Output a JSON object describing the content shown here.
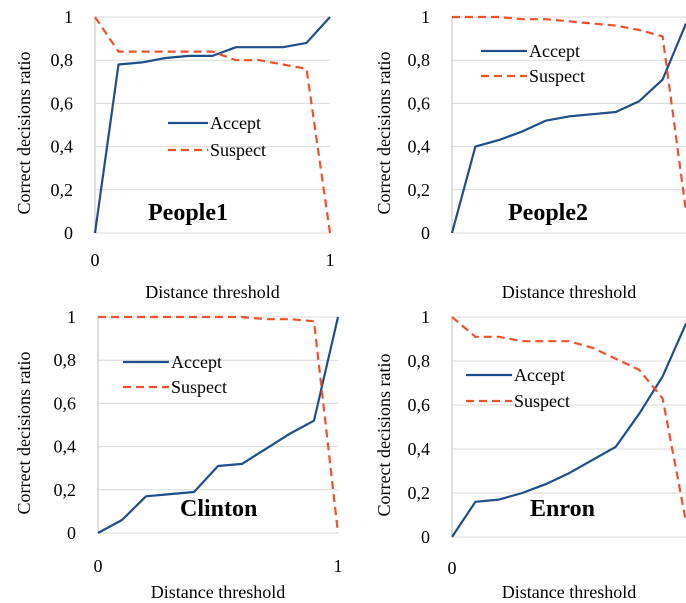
{
  "chart_data": [
    {
      "type": "line",
      "title": "People1",
      "xlabel": "Distance threshold",
      "ylabel": "Correct decisions ratio",
      "xlim": [
        0,
        1
      ],
      "ylim": [
        0,
        1
      ],
      "xticks": [
        "0",
        "1"
      ],
      "yticks": [
        "0",
        "0,2",
        "0,4",
        "0,6",
        "0,8",
        "1"
      ],
      "legend_position": "center-right",
      "series": [
        {
          "name": "Accept",
          "color": "#1F4E8C",
          "style": "solid",
          "x": [
            0,
            0.1,
            0.2,
            0.3,
            0.4,
            0.5,
            0.6,
            0.7,
            0.8,
            0.9,
            1.0
          ],
          "y": [
            0,
            0.78,
            0.79,
            0.81,
            0.82,
            0.82,
            0.86,
            0.86,
            0.86,
            0.88,
            1.0
          ]
        },
        {
          "name": "Suspect",
          "color": "#F0502A",
          "style": "dashed",
          "x": [
            0,
            0.1,
            0.2,
            0.3,
            0.4,
            0.5,
            0.6,
            0.7,
            0.8,
            0.9,
            1.0
          ],
          "y": [
            1.0,
            0.84,
            0.84,
            0.84,
            0.84,
            0.84,
            0.8,
            0.8,
            0.78,
            0.76,
            0
          ]
        }
      ]
    },
    {
      "type": "line",
      "title": "People2",
      "xlabel": "Distance threshold",
      "ylabel": "Correct decisions ratio",
      "xlim": [
        0,
        1
      ],
      "ylim": [
        0,
        1
      ],
      "xticks": [],
      "yticks": [
        "0",
        "0,2",
        "0,4",
        "0,6",
        "0,8",
        "1"
      ],
      "legend_position": "top-left",
      "series": [
        {
          "name": "Accept",
          "color": "#1F4E8C",
          "style": "solid",
          "x": [
            0,
            0.1,
            0.2,
            0.3,
            0.4,
            0.5,
            0.6,
            0.7,
            0.8,
            0.9,
            1.0
          ],
          "y": [
            0,
            0.4,
            0.43,
            0.47,
            0.52,
            0.54,
            0.55,
            0.56,
            0.61,
            0.71,
            0.97
          ]
        },
        {
          "name": "Suspect",
          "color": "#F0502A",
          "style": "dashed",
          "x": [
            0,
            0.1,
            0.2,
            0.3,
            0.4,
            0.5,
            0.6,
            0.7,
            0.8,
            0.9,
            1.0
          ],
          "y": [
            1.0,
            1.0,
            1.0,
            0.99,
            0.99,
            0.98,
            0.97,
            0.96,
            0.94,
            0.91,
            0.1
          ]
        }
      ]
    },
    {
      "type": "line",
      "title": "Clinton",
      "xlabel": "Distance threshold",
      "ylabel": "Correct decisions ratio",
      "xlim": [
        0,
        1
      ],
      "ylim": [
        0,
        1
      ],
      "xticks": [
        "0",
        "1"
      ],
      "yticks": [
        "0",
        "0,2",
        "0,4",
        "0,6",
        "0,8",
        "1"
      ],
      "legend_position": "top-left",
      "series": [
        {
          "name": "Accept",
          "color": "#1F4E8C",
          "style": "solid",
          "x": [
            0,
            0.1,
            0.2,
            0.3,
            0.4,
            0.5,
            0.6,
            0.7,
            0.8,
            0.9,
            1.0
          ],
          "y": [
            0,
            0.06,
            0.17,
            0.18,
            0.19,
            0.31,
            0.32,
            0.39,
            0.46,
            0.52,
            1.0
          ]
        },
        {
          "name": "Suspect",
          "color": "#F0502A",
          "style": "dashed",
          "x": [
            0,
            0.1,
            0.2,
            0.3,
            0.4,
            0.5,
            0.6,
            0.7,
            0.8,
            0.9,
            1.0
          ],
          "y": [
            1.0,
            1.0,
            1.0,
            1.0,
            1.0,
            1.0,
            1.0,
            0.99,
            0.99,
            0.98,
            0
          ]
        }
      ]
    },
    {
      "type": "line",
      "title": "Enron",
      "xlabel": "Distance threshold",
      "ylabel": "Correct decisions ratio",
      "xlim": [
        0,
        1
      ],
      "ylim": [
        0,
        1
      ],
      "xticks": [
        "0"
      ],
      "yticks": [
        "0",
        "0,2",
        "0,4",
        "0,6",
        "0,8",
        "1"
      ],
      "legend_position": "top-left",
      "series": [
        {
          "name": "Accept",
          "color": "#1F4E8C",
          "style": "solid",
          "x": [
            0,
            0.1,
            0.2,
            0.3,
            0.4,
            0.5,
            0.6,
            0.7,
            0.8,
            0.9,
            1.0
          ],
          "y": [
            0,
            0.16,
            0.17,
            0.2,
            0.24,
            0.29,
            0.35,
            0.41,
            0.56,
            0.73,
            0.97
          ]
        },
        {
          "name": "Suspect",
          "color": "#F0502A",
          "style": "dashed",
          "x": [
            0,
            0.1,
            0.2,
            0.3,
            0.4,
            0.5,
            0.6,
            0.7,
            0.8,
            0.9,
            1.0
          ],
          "y": [
            1.0,
            0.91,
            0.91,
            0.89,
            0.89,
            0.89,
            0.86,
            0.81,
            0.76,
            0.63,
            0.07
          ]
        }
      ]
    }
  ]
}
